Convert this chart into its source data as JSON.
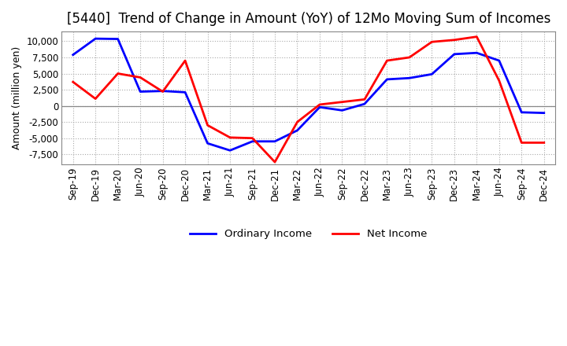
{
  "title": "[5440]  Trend of Change in Amount (YoY) of 12Mo Moving Sum of Incomes",
  "ylabel": "Amount (million yen)",
  "x_labels": [
    "Sep-19",
    "Dec-19",
    "Mar-20",
    "Jun-20",
    "Sep-20",
    "Dec-20",
    "Mar-21",
    "Jun-21",
    "Sep-21",
    "Dec-21",
    "Mar-22",
    "Jun-22",
    "Sep-22",
    "Dec-22",
    "Mar-23",
    "Jun-23",
    "Sep-23",
    "Dec-23",
    "Mar-24",
    "Jun-24",
    "Sep-24",
    "Dec-24"
  ],
  "ordinary_income": [
    7900,
    10400,
    10350,
    2200,
    2300,
    2100,
    -5800,
    -6900,
    -5500,
    -5500,
    -3800,
    -200,
    -700,
    300,
    4100,
    4300,
    4900,
    8000,
    8200,
    7000,
    -1000,
    -1100
  ],
  "net_income": [
    3700,
    1100,
    5000,
    4400,
    2200,
    7000,
    -3000,
    -4900,
    -5000,
    -8700,
    -2500,
    200,
    600,
    1000,
    7000,
    7500,
    9900,
    10200,
    10700,
    3900,
    -5700,
    -5700
  ],
  "ordinary_income_color": "#0000ff",
  "net_income_color": "#ff0000",
  "linewidth": 2.0,
  "ylim": [
    -9000,
    11500
  ],
  "yticks": [
    -7500,
    -5000,
    -2500,
    0,
    2500,
    5000,
    7500,
    10000
  ],
  "background_color": "#ffffff",
  "grid_color": "#aaaaaa",
  "legend_ordinary": "Ordinary Income",
  "legend_net": "Net Income",
  "title_fontsize": 12,
  "axis_fontsize": 9,
  "tick_fontsize": 8.5
}
